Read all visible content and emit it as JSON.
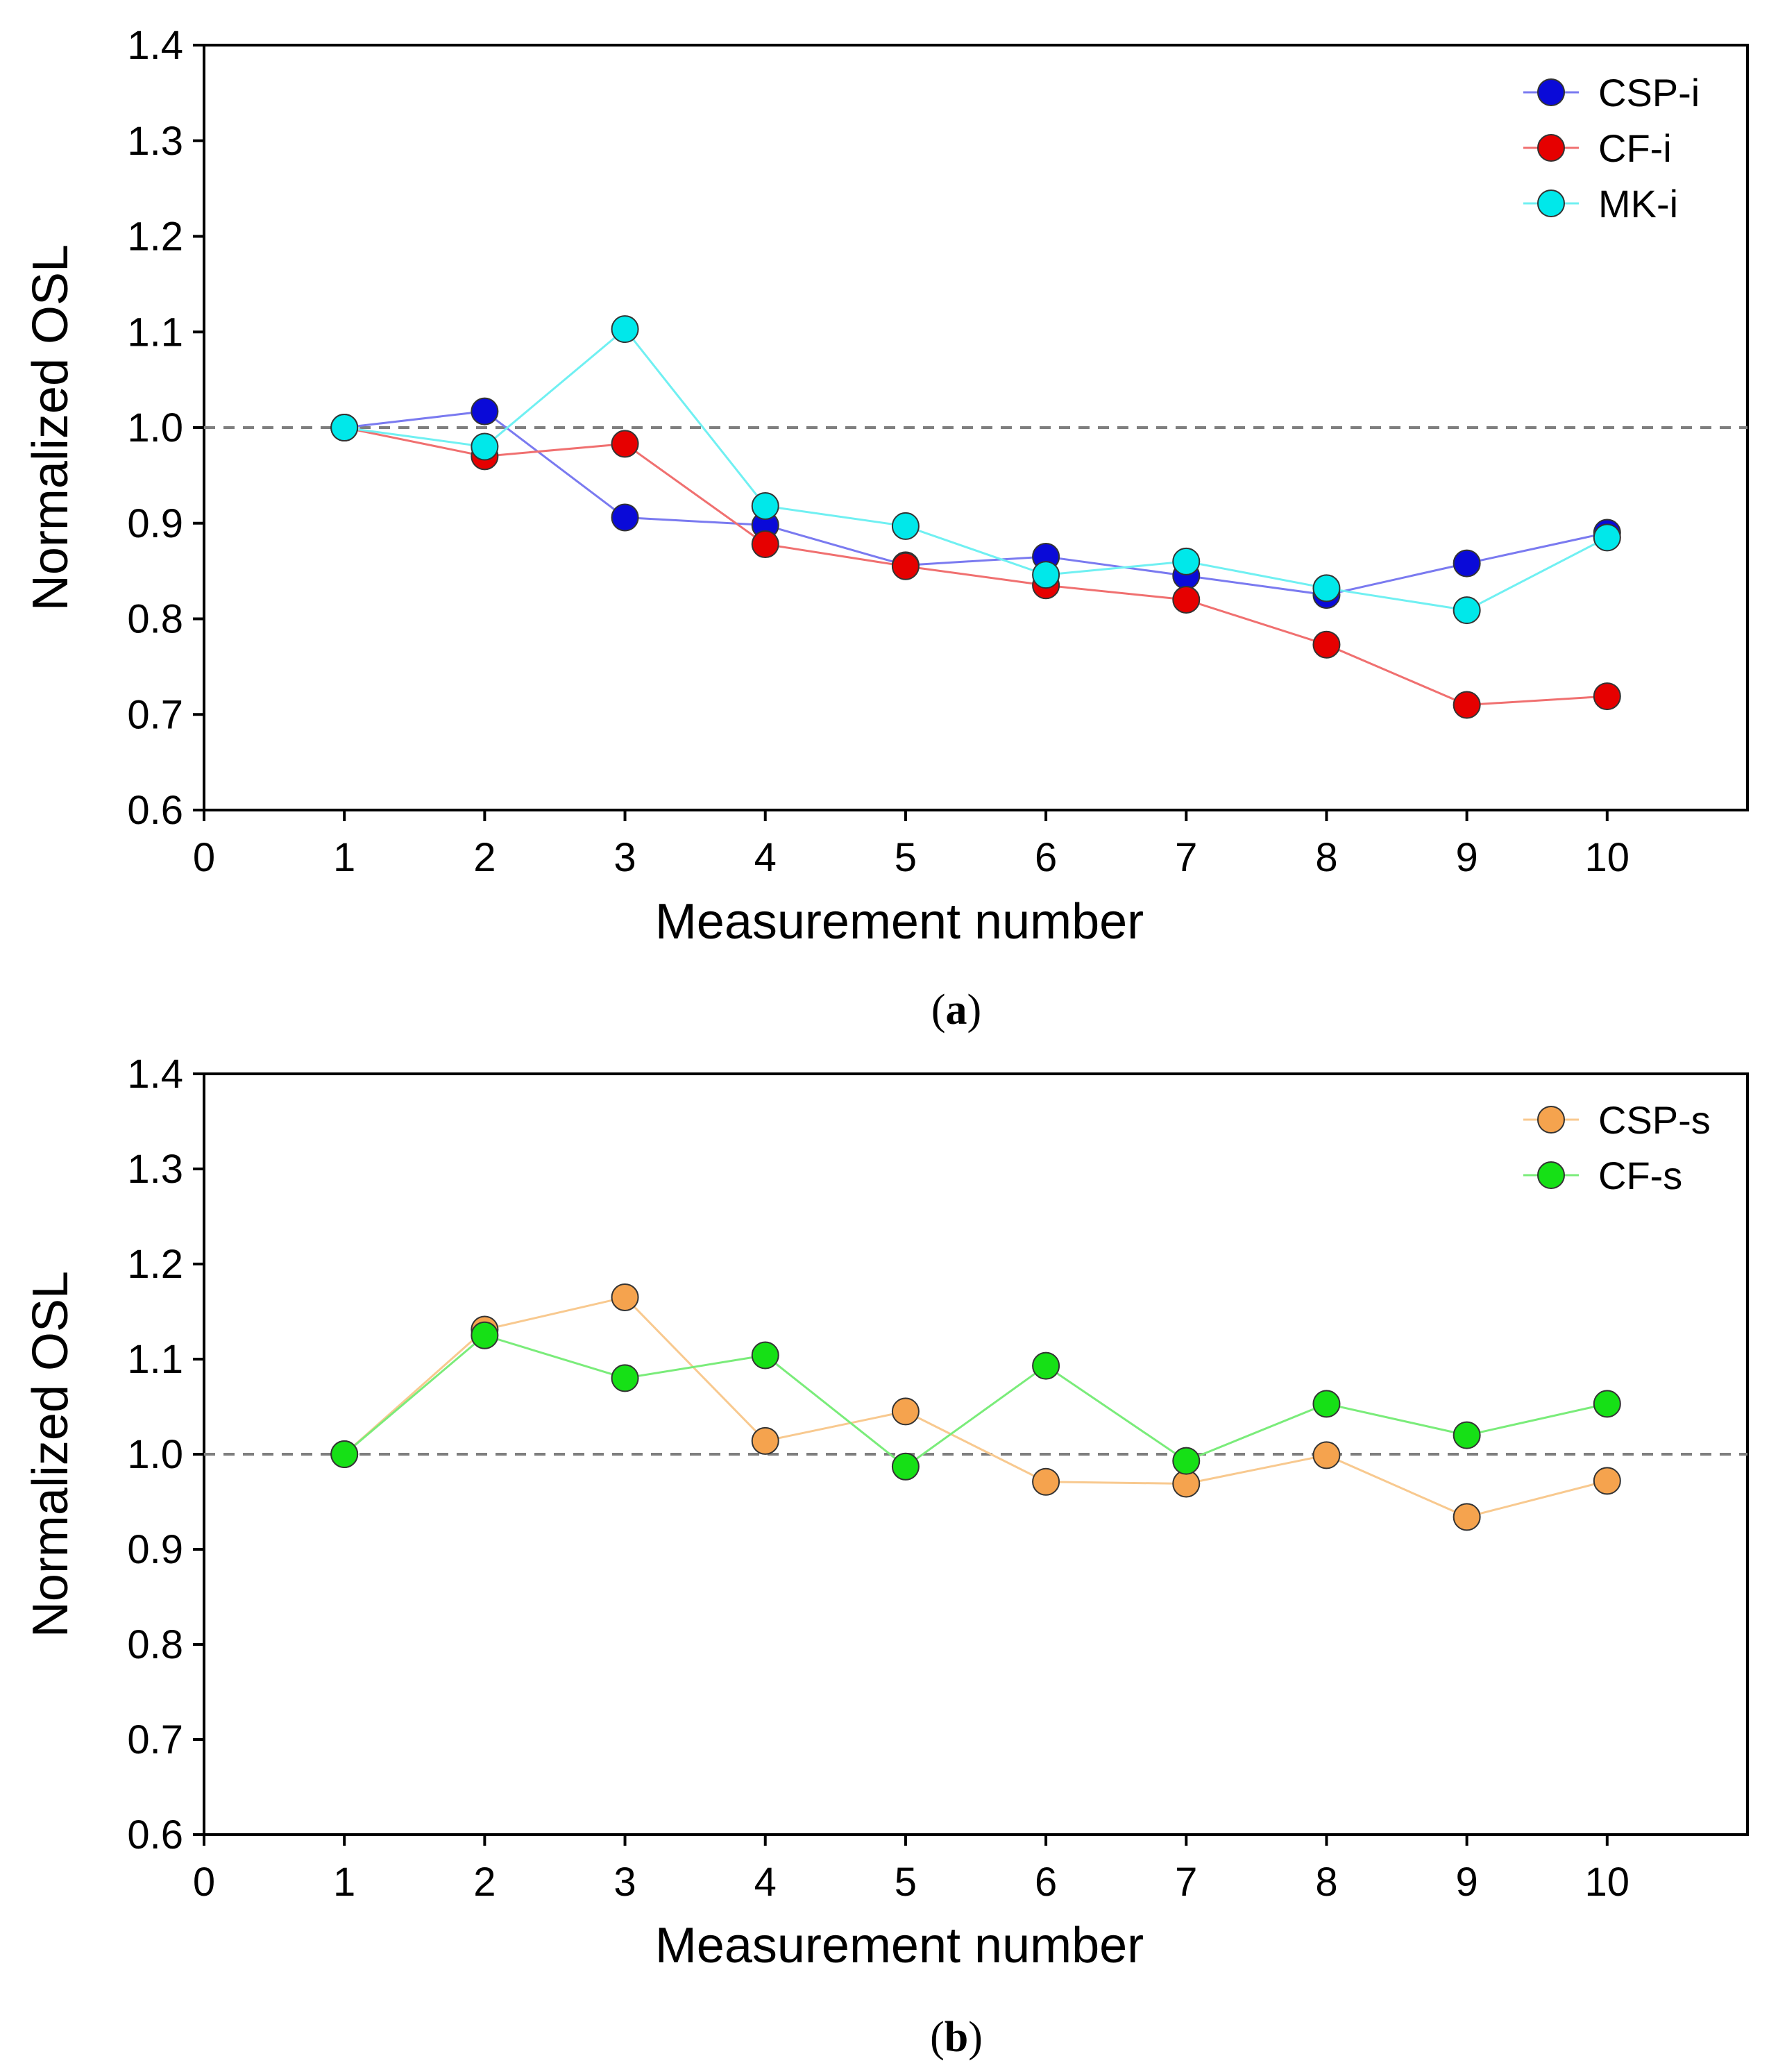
{
  "chart_data": [
    {
      "type": "line",
      "title": "",
      "xlabel": "Measurement number",
      "ylabel": "Normalized OSL",
      "xlim": [
        0,
        11
      ],
      "ylim": [
        0.6,
        1.4
      ],
      "xticks": [
        0,
        1,
        2,
        3,
        4,
        5,
        6,
        7,
        8,
        9,
        10
      ],
      "yticks": [
        "0.6",
        "0.7",
        "0.8",
        "0.9",
        "1.0",
        "1.1",
        "1.2",
        "1.3",
        "1.4"
      ],
      "reference_line": 1.0,
      "legend_position": "top-right",
      "caption_letter": "a",
      "x": [
        1,
        2,
        3,
        4,
        5,
        6,
        7,
        8,
        9,
        10
      ],
      "series": [
        {
          "name": "CSP-i",
          "color": "#0a0ad8",
          "line_color": "#7a7af0",
          "values": [
            1.0,
            1.017,
            0.906,
            0.898,
            0.856,
            0.865,
            0.845,
            0.825,
            0.858,
            0.89
          ]
        },
        {
          "name": "CF-i",
          "color": "#e60000",
          "line_color": "#f07070",
          "values": [
            1.0,
            0.97,
            0.983,
            0.878,
            0.855,
            0.835,
            0.82,
            0.773,
            0.71,
            0.719
          ]
        },
        {
          "name": "MK-i",
          "color": "#00e8ea",
          "line_color": "#70f0f2",
          "values": [
            1.0,
            0.98,
            1.103,
            0.918,
            0.897,
            0.846,
            0.86,
            0.832,
            0.809,
            0.885
          ]
        }
      ]
    },
    {
      "type": "line",
      "title": "",
      "xlabel": "Measurement number",
      "ylabel": "Normalized OSL",
      "xlim": [
        0,
        11
      ],
      "ylim": [
        0.6,
        1.4
      ],
      "xticks": [
        0,
        1,
        2,
        3,
        4,
        5,
        6,
        7,
        8,
        9,
        10
      ],
      "yticks": [
        "0.6",
        "0.7",
        "0.8",
        "0.9",
        "1.0",
        "1.1",
        "1.2",
        "1.3",
        "1.4"
      ],
      "reference_line": 1.0,
      "legend_position": "top-right",
      "caption_letter": "b",
      "x": [
        1,
        2,
        3,
        4,
        5,
        6,
        7,
        8,
        9,
        10
      ],
      "series": [
        {
          "name": "CSP-s",
          "color": "#f5a34e",
          "line_color": "#f8c98f",
          "values": [
            1.0,
            1.131,
            1.165,
            1.014,
            1.045,
            0.971,
            0.969,
            0.999,
            0.934,
            0.972
          ]
        },
        {
          "name": "CF-s",
          "color": "#16e016",
          "line_color": "#7aec7a",
          "values": [
            1.0,
            1.125,
            1.08,
            1.104,
            0.987,
            1.093,
            0.993,
            1.053,
            1.02,
            1.053
          ]
        }
      ]
    }
  ]
}
